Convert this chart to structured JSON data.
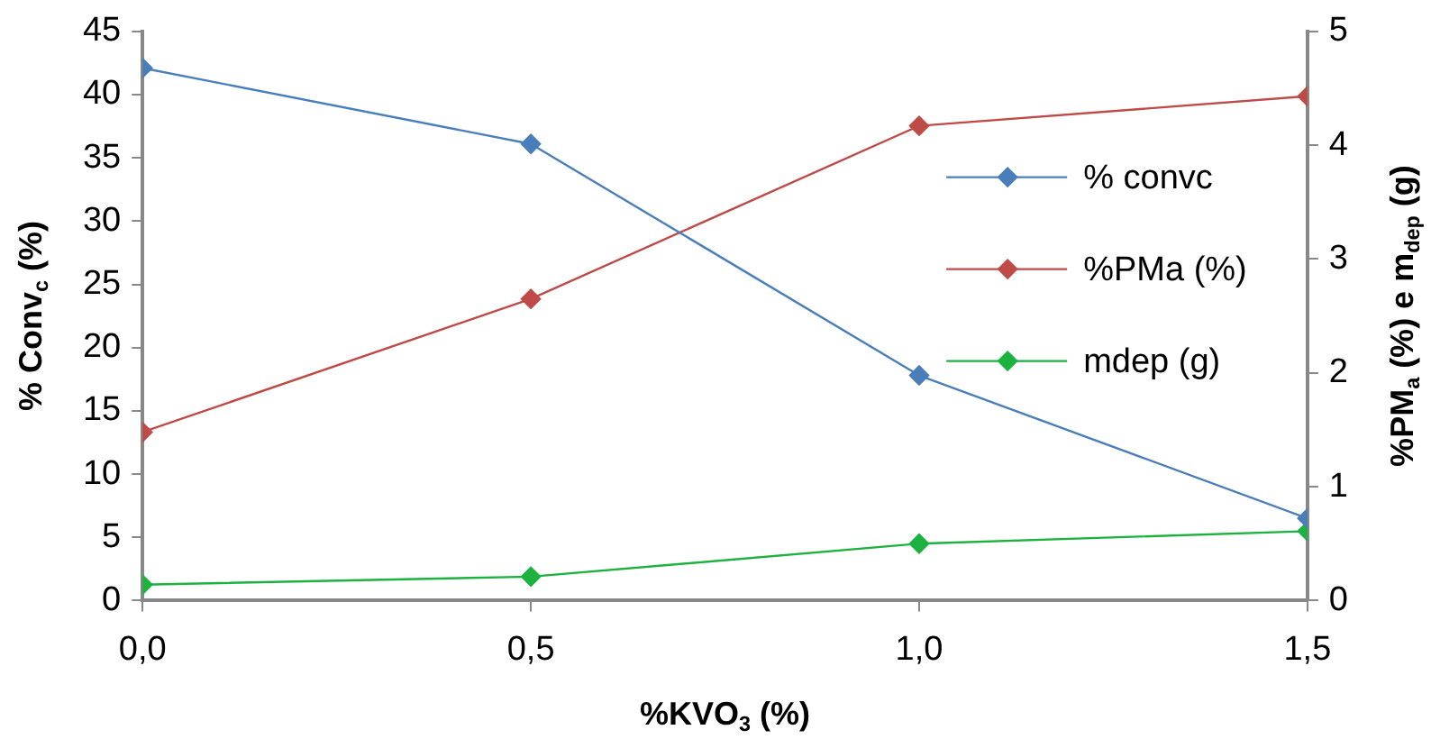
{
  "chart_data": {
    "type": "line",
    "xlabel": "%KVO$_{3}$ (%)",
    "ylabel": "% Conv$_{c}$ (%)",
    "y2label": "%PM$_{a}$ (%) e m$_{dep}$ (g)",
    "x": [
      0,
      0.5,
      1,
      1.5
    ],
    "series": [
      {
        "name": "% convc",
        "color": "#4a7ebb",
        "values": [
          42.1,
          36.1,
          17.8,
          6.5
        ]
      },
      {
        "name": "%PMa (%)",
        "color": "#be4b48",
        "axis": "y2",
        "values": [
          1.48,
          2.65,
          4.17,
          4.43
        ]
      },
      {
        "name": "mdep (g)",
        "color": "#1db23f",
        "axis": "y2",
        "values": [
          0.14,
          0.21,
          0.5,
          0.61
        ]
      }
    ],
    "xlim": [
      0,
      1.5
    ],
    "xticks": [
      {
        "value": 0,
        "label": "0,0"
      },
      {
        "value": 0.5,
        "label": "0,5"
      },
      {
        "value": 1,
        "label": "1,0"
      },
      {
        "value": 1.5,
        "label": "1,5"
      }
    ],
    "ylim": [
      0,
      45
    ],
    "yticks": [
      0,
      5,
      10,
      15,
      20,
      25,
      30,
      35,
      40,
      45
    ],
    "y2lim": [
      0,
      5
    ],
    "y2ticks": [
      0,
      1,
      2,
      3,
      4,
      5
    ],
    "grid": false,
    "legend": "right",
    "marker": "diamond",
    "line_style": "solid"
  }
}
